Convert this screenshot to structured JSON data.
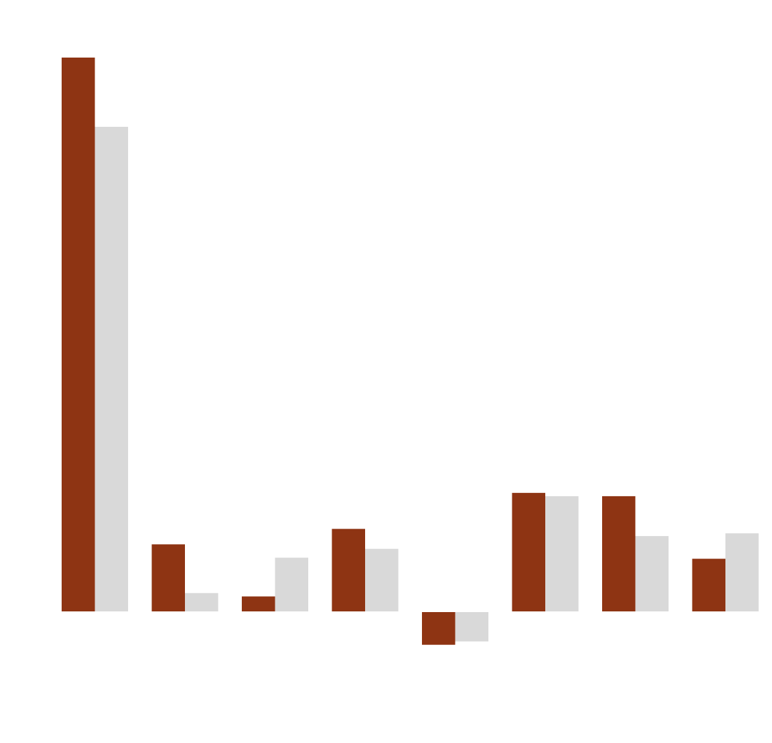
{
  "chart_data": {
    "type": "bar",
    "categories": [
      "",
      "",
      "",
      "",
      "",
      "",
      "",
      ""
    ],
    "series": [
      {
        "color": "#8e3413",
        "values": [
          100,
          12.1,
          2.7,
          14.9,
          -5.9,
          21.4,
          20.8,
          9.5
        ]
      },
      {
        "color": "#d9d9d9",
        "values": [
          87.5,
          3.3,
          9.7,
          11.3,
          -5.3,
          20.8,
          13.6,
          14.1
        ]
      }
    ],
    "ylim": [
      -6,
      100
    ],
    "grid": false,
    "legend": "none",
    "title": "",
    "xlabel": "",
    "ylabel": ""
  }
}
